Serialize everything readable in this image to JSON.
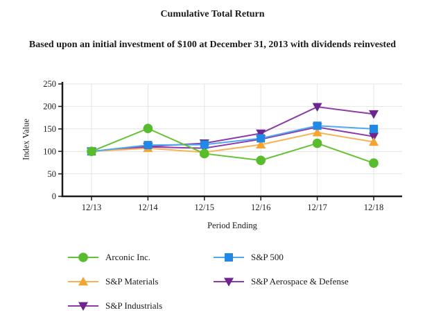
{
  "chart_data": {
    "type": "line",
    "title": "Cumulative Total Return",
    "subtitle": "Based upon an initial investment of $100 at December 31, 2013 with dividends reinvested",
    "xlabel": "Period Ending",
    "ylabel": "Index Value",
    "categories": [
      "12/13",
      "12/14",
      "12/15",
      "12/16",
      "12/17",
      "12/18"
    ],
    "series": [
      {
        "name": "Arconic Inc.",
        "marker": "circle",
        "color": "#58bd2a",
        "line_color": "#63c433",
        "values": [
          100,
          151,
          95,
          80,
          118,
          74
        ]
      },
      {
        "name": "S&P 500",
        "marker": "square",
        "color": "#1f88e8",
        "line_color": "#4fa8f2",
        "values": [
          100,
          114,
          115,
          129,
          157,
          150
        ]
      },
      {
        "name": "S&P Materials",
        "marker": "triangle-up",
        "color": "#f6a42c",
        "line_color": "#f9b254",
        "values": [
          100,
          107,
          98,
          115,
          142,
          121
        ]
      },
      {
        "name": "S&P Aerospace & Defense",
        "marker": "triangle-down",
        "color": "#6f2590",
        "line_color": "#8d3ba6",
        "values": [
          100,
          111,
          118,
          140,
          199,
          183
        ]
      },
      {
        "name": "S&P Industrials",
        "marker": "triangle-down",
        "color": "#6f2590",
        "line_color": "#8d3ba6",
        "values": [
          100,
          110,
          107,
          127,
          154,
          133
        ]
      }
    ],
    "ylim": [
      0,
      250
    ],
    "y_ticks": [
      0,
      50,
      100,
      150,
      200,
      250
    ],
    "grid": true,
    "legend_position": "bottom",
    "axis_color": "#1a1a1a",
    "grid_color": "#e4e4e4",
    "tick_label_color": "#1a1a1a"
  }
}
